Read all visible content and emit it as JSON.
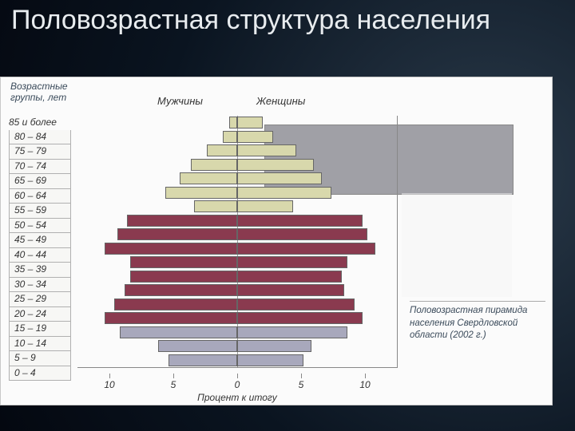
{
  "slide": {
    "title": "Половозрастная структура населения"
  },
  "chart": {
    "type": "population-pyramid",
    "y_title": "Возрастные\nгруппы, лет",
    "male_label": "Мужчины",
    "female_label": "Женщины",
    "x_title": "Процент к итогу",
    "caption": "Половозрастная пирамида населения Свердловской области (2002 г.)",
    "x_domain_each_side": 12.5,
    "x_ticks": [
      10,
      5,
      0,
      5,
      10
    ],
    "colors": {
      "group_old": "#d8d8ac",
      "group_mid": "#8a3a4f",
      "group_young": "#a8a8bc",
      "border": "#666666",
      "background": "#fbfbfb",
      "grid": "#b0b0b0"
    },
    "label_fontsize": 12,
    "rows": [
      {
        "label": "85 и более",
        "male": 0.6,
        "female": 2.0,
        "group": "old"
      },
      {
        "label": "80 – 84",
        "male": 1.1,
        "female": 2.8,
        "group": "old"
      },
      {
        "label": "75 – 79",
        "male": 2.4,
        "female": 4.6,
        "group": "old"
      },
      {
        "label": "70 – 74",
        "male": 3.6,
        "female": 6.0,
        "group": "old"
      },
      {
        "label": "65 – 69",
        "male": 4.5,
        "female": 6.6,
        "group": "old"
      },
      {
        "label": "60 – 64",
        "male": 5.6,
        "female": 7.4,
        "group": "old"
      },
      {
        "label": "55 – 59",
        "male": 3.4,
        "female": 4.4,
        "group": "old"
      },
      {
        "label": "50 – 54",
        "male": 8.6,
        "female": 9.8,
        "group": "mid"
      },
      {
        "label": "45 – 49",
        "male": 9.4,
        "female": 10.2,
        "group": "mid"
      },
      {
        "label": "40 – 44",
        "male": 10.4,
        "female": 10.8,
        "group": "mid"
      },
      {
        "label": "35 – 39",
        "male": 8.4,
        "female": 8.6,
        "group": "mid"
      },
      {
        "label": "30 – 34",
        "male": 8.4,
        "female": 8.2,
        "group": "mid"
      },
      {
        "label": "25 – 29",
        "male": 8.8,
        "female": 8.4,
        "group": "mid"
      },
      {
        "label": "20 – 24",
        "male": 9.6,
        "female": 9.2,
        "group": "mid"
      },
      {
        "label": "15 – 19",
        "male": 10.4,
        "female": 9.8,
        "group": "mid"
      },
      {
        "label": "10 – 14",
        "male": 9.2,
        "female": 8.6,
        "group": "young"
      },
      {
        "label": "5 – 9",
        "male": 6.2,
        "female": 5.8,
        "group": "young"
      },
      {
        "label": "0 – 4",
        "male": 5.4,
        "female": 5.2,
        "group": "young"
      }
    ]
  }
}
